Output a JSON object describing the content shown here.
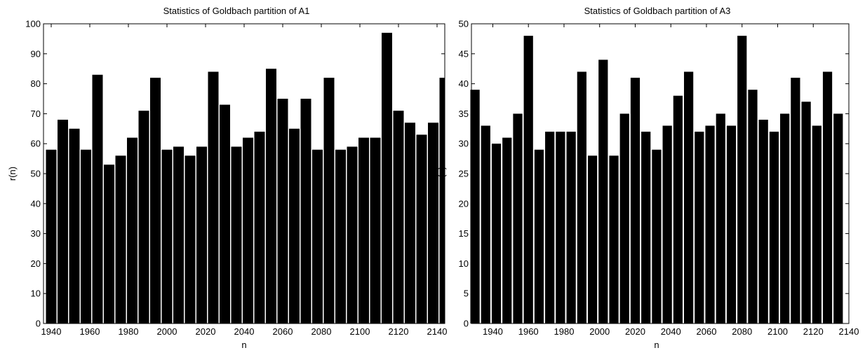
{
  "chart_data": [
    {
      "type": "bar",
      "title": "Statistics of Goldbach partition of A1",
      "xlabel": "n",
      "ylabel": "r(n)",
      "ylim": [
        0,
        100
      ],
      "xlim": [
        1936,
        2144
      ],
      "yticks": [
        0,
        10,
        20,
        30,
        40,
        50,
        60,
        70,
        80,
        90,
        100
      ],
      "xticks": [
        1940,
        1960,
        1980,
        2000,
        2020,
        2040,
        2060,
        2080,
        2100,
        2120,
        2140
      ],
      "bar_color": "#000000",
      "grid": false,
      "x": [
        1940,
        1946,
        1952,
        1958,
        1964,
        1970,
        1976,
        1982,
        1988,
        1994,
        2000,
        2006,
        2012,
        2018,
        2024,
        2030,
        2036,
        2042,
        2048,
        2054,
        2060,
        2066,
        2072,
        2078,
        2084,
        2090,
        2096,
        2102,
        2108,
        2114,
        2120,
        2126,
        2132,
        2138,
        2144
      ],
      "values": [
        58,
        68,
        65,
        58,
        83,
        53,
        56,
        62,
        71,
        82,
        58,
        59,
        56,
        59,
        84,
        73,
        59,
        62,
        64,
        85,
        75,
        65,
        75,
        58,
        82,
        58,
        59,
        62,
        62,
        97,
        71,
        67,
        63,
        67,
        82
      ]
    },
    {
      "type": "bar",
      "title": "Statistics of Goldbach partition of A3",
      "xlabel": "n",
      "ylabel": "r(n)",
      "ylim": [
        0,
        50
      ],
      "xlim": [
        1928,
        2140
      ],
      "yticks": [
        0,
        5,
        10,
        15,
        20,
        25,
        30,
        35,
        40,
        45,
        50
      ],
      "xticks": [
        1940,
        1960,
        1980,
        2000,
        2020,
        2040,
        2060,
        2080,
        2100,
        2120,
        2140
      ],
      "bar_color": "#000000",
      "grid": false,
      "x": [
        1930,
        1936,
        1942,
        1948,
        1954,
        1960,
        1966,
        1972,
        1978,
        1984,
        1990,
        1996,
        2002,
        2008,
        2014,
        2020,
        2026,
        2032,
        2038,
        2044,
        2050,
        2056,
        2062,
        2068,
        2074,
        2080,
        2086,
        2092,
        2098,
        2104,
        2110,
        2116,
        2122,
        2128,
        2134
      ],
      "values": [
        39,
        33,
        30,
        31,
        35,
        48,
        29,
        32,
        32,
        32,
        42,
        28,
        44,
        28,
        35,
        41,
        32,
        29,
        33,
        38,
        42,
        32,
        33,
        35,
        33,
        48,
        39,
        34,
        32,
        35,
        41,
        37,
        33,
        42,
        35
      ]
    }
  ]
}
